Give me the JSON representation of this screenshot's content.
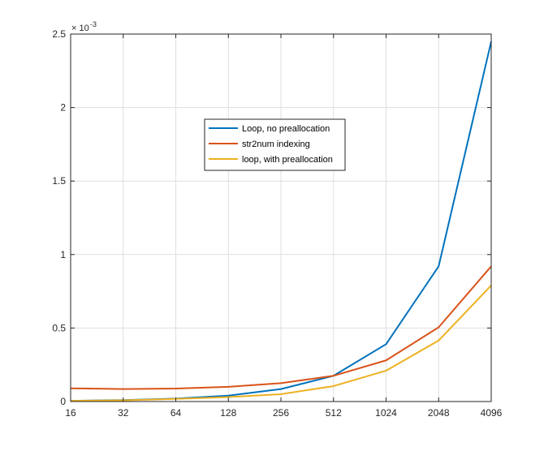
{
  "chart_data": {
    "type": "line",
    "title": "",
    "xlabel": "",
    "ylabel": "",
    "x": [
      "16",
      "32",
      "64",
      "128",
      "256",
      "512",
      "1024",
      "2048",
      "4096"
    ],
    "x_scale": "log2",
    "ylim": [
      0,
      2.5
    ],
    "y_ticks": [
      "0",
      "0.5",
      "1",
      "1.5",
      "2",
      "2.5"
    ],
    "y_exponent": "× 10",
    "y_exponent_power": "-3",
    "grid": true,
    "legend_position": "upper-center",
    "series": [
      {
        "name": "Loop, no preallocation",
        "color": "#0072BD",
        "values": [
          0.005,
          0.01,
          0.02,
          0.04,
          0.085,
          0.175,
          0.39,
          0.92,
          2.45
        ]
      },
      {
        "name": "str2num indexing",
        "color": "#D95319",
        "values": [
          0.09,
          0.085,
          0.088,
          0.1,
          0.125,
          0.175,
          0.28,
          0.505,
          0.92
        ]
      },
      {
        "name": "loop, with preallocation",
        "color": "#EDB120",
        "values": [
          0.005,
          0.008,
          0.018,
          0.03,
          0.05,
          0.105,
          0.21,
          0.415,
          0.79
        ]
      }
    ]
  }
}
